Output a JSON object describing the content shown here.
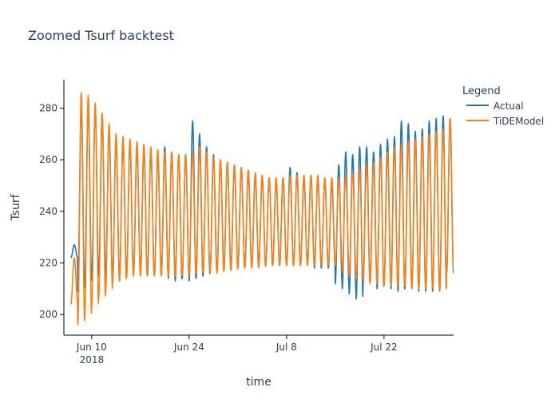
{
  "chart_data": {
    "type": "line",
    "title": "Zoomed Tsurf backtest",
    "xlabel": "time",
    "ylabel": "Tsurf",
    "x_start": "2018-06-07",
    "x_end": "2018-08-01",
    "xlim": [
      "2018-06-06",
      "2018-08-01"
    ],
    "ylim": [
      192,
      291
    ],
    "x_ticks": [
      {
        "date": "2018-06-10",
        "label": "Jun 10",
        "sublabel": "2018"
      },
      {
        "date": "2018-06-24",
        "label": "Jun 24",
        "sublabel": ""
      },
      {
        "date": "2018-07-08",
        "label": "Jul 8",
        "sublabel": ""
      },
      {
        "date": "2018-07-22",
        "label": "Jul 22",
        "sublabel": ""
      }
    ],
    "y_ticks": [
      200,
      220,
      240,
      260,
      280
    ],
    "legend": {
      "title": "Legend",
      "placement": "right"
    },
    "grid": false,
    "series": [
      {
        "name": "Actual",
        "color": "#1f77b4",
        "daily_max": [
          227,
          281,
          282,
          280,
          277,
          272,
          268,
          267,
          266,
          265,
          264,
          263,
          262,
          265,
          263,
          262,
          262,
          275,
          270,
          265,
          262,
          260,
          259,
          258,
          257,
          256,
          254,
          253,
          253,
          252,
          253,
          257,
          255,
          253,
          254,
          253,
          252,
          251,
          258,
          263,
          262,
          265,
          265,
          263,
          266,
          268,
          269,
          275,
          274,
          271,
          272,
          275,
          276,
          277,
          276
        ],
        "daily_min": [
          222,
          209,
          212,
          214,
          215,
          214,
          214,
          215,
          215,
          216,
          215,
          215,
          215,
          215,
          214,
          213,
          214,
          213,
          214,
          215,
          216,
          217,
          218,
          218,
          218,
          218,
          219,
          219,
          219,
          219,
          219,
          219,
          219,
          219,
          219,
          218,
          218,
          218,
          212,
          210,
          208,
          206,
          212,
          213,
          210,
          211,
          210,
          209,
          210,
          210,
          209,
          209,
          209,
          209,
          216
        ]
      },
      {
        "name": "TiDEModel",
        "color": "#ff7f0e",
        "daily_max": [
          222,
          286,
          285,
          282,
          278,
          274,
          270,
          269,
          268,
          267,
          266,
          265,
          264,
          263,
          263,
          262,
          262,
          263,
          265,
          263,
          261,
          260,
          259,
          258,
          257,
          256,
          255,
          254,
          253,
          253,
          253,
          254,
          254,
          254,
          254,
          254,
          253,
          253,
          253,
          254,
          255,
          257,
          258,
          259,
          261,
          263,
          265,
          266,
          267,
          268,
          269,
          270,
          271,
          272,
          276
        ],
        "daily_min": [
          204,
          196,
          199,
          203,
          206,
          209,
          212,
          213,
          214,
          215,
          215,
          215,
          215,
          215,
          215,
          215,
          215,
          215,
          216,
          216,
          216,
          216,
          217,
          217,
          218,
          218,
          218,
          218,
          219,
          219,
          219,
          219,
          219,
          219,
          219,
          219,
          219,
          219,
          219,
          217,
          215,
          214,
          213,
          212,
          212,
          211,
          211,
          211,
          211,
          210,
          210,
          210,
          210,
          209,
          218
        ]
      }
    ]
  }
}
